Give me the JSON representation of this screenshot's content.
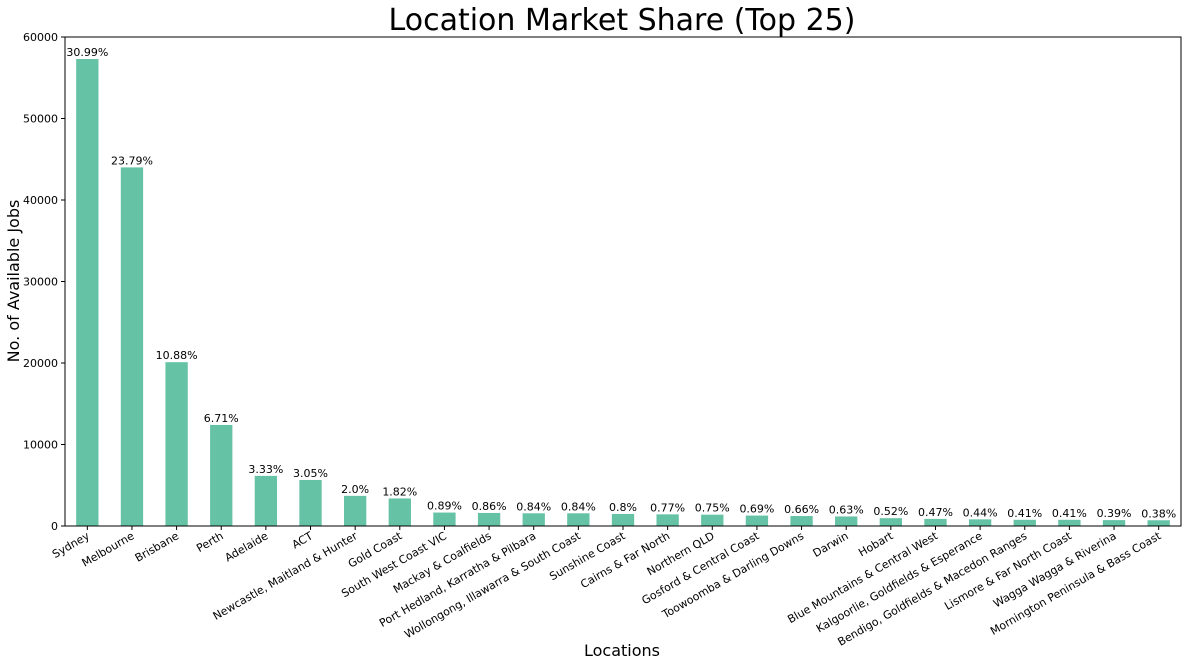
{
  "chart_data": {
    "type": "bar",
    "title": "Location Market Share (Top 25)",
    "xlabel": "Locations",
    "ylabel": "No. of Available Jobs",
    "ylim": [
      0,
      60000
    ],
    "yticks": [
      0,
      10000,
      20000,
      30000,
      40000,
      50000,
      60000
    ],
    "grid": false,
    "colors": {
      "bar": "#66c2a5"
    },
    "categories": [
      "Sydney",
      "Melbourne",
      "Brisbane",
      "Perth",
      "Adelaide",
      "ACT",
      "Newcastle, Maitland & Hunter",
      "Gold Coast",
      "South West Coast VIC",
      "Mackay & Coalfields",
      "Port Hedland, Karratha & Pilbara",
      "Wollongong, Illawarra & South Coast",
      "Sunshine Coast",
      "Cairns & Far North",
      "Northern QLD",
      "Gosford & Central Coast",
      "Toowoomba & Darling Downs",
      "Darwin",
      "Hobart",
      "Blue Mountains & Central West",
      "Kalgoorlie, Goldfields & Esperance",
      "Bendigo, Goldfields & Macedon Ranges",
      "Lismore & Far North Coast",
      "Wagga Wagga & Riverina",
      "Mornington Peninsula & Bass Coast"
    ],
    "values": [
      57300,
      44000,
      20100,
      12400,
      6150,
      5650,
      3700,
      3380,
      1650,
      1600,
      1560,
      1560,
      1480,
      1430,
      1390,
      1280,
      1220,
      1170,
      960,
      870,
      815,
      760,
      760,
      725,
      705
    ],
    "data_labels": [
      "30.99%",
      "23.79%",
      "10.88%",
      "6.71%",
      "3.33%",
      "3.05%",
      "2.0%",
      "1.82%",
      "0.89%",
      "0.86%",
      "0.84%",
      "0.84%",
      "0.8%",
      "0.77%",
      "0.75%",
      "0.69%",
      "0.66%",
      "0.63%",
      "0.52%",
      "0.47%",
      "0.44%",
      "0.41%",
      "0.41%",
      "0.39%",
      "0.38%"
    ]
  }
}
